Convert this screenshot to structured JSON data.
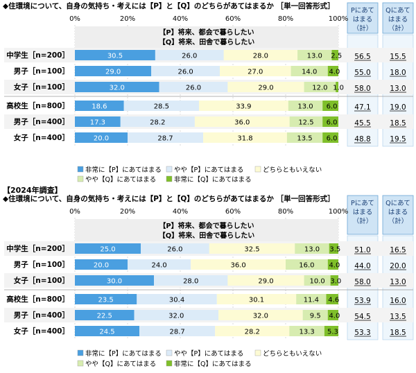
{
  "chart_data": [
    {
      "type": "bar",
      "stacked": true,
      "orientation": "horizontal",
      "year_label": "",
      "title": "◆住環境について、自身の気持ち・考えには【P】と【Q】のどちらがあてはまるか ［単一回答形式］",
      "axis_ticks": [
        "0%",
        "20%",
        "40%",
        "60%",
        "80%",
        "100%"
      ],
      "xlim": [
        0,
        100
      ],
      "statement_p": "【P】将来、都会で暮らしたい",
      "statement_q": "【Q】将来、田舎で暮らしたい",
      "summary_headers": [
        "Pにあて\nはまる\n（計）",
        "Qにあて\nはまる\n（計）"
      ],
      "categories": [
        "中学生［n=200］",
        "男子［n=100］",
        "女子［n=100］",
        "高校生［n=800］",
        "男子［n=400］",
        "女子［n=400］"
      ],
      "series": [
        {
          "name": "非常に【P】にあてはまる",
          "values": [
            30.5,
            29.0,
            32.0,
            18.6,
            17.3,
            20.0
          ]
        },
        {
          "name": "やや【P】にあてはまる",
          "values": [
            26.0,
            26.0,
            26.0,
            28.5,
            28.2,
            28.7
          ]
        },
        {
          "name": "どちらともいえない",
          "values": [
            28.0,
            27.0,
            29.0,
            33.9,
            36.0,
            31.8
          ]
        },
        {
          "name": "やや【Q】にあてはまる",
          "values": [
            13.0,
            14.0,
            12.0,
            13.0,
            12.5,
            13.5
          ]
        },
        {
          "name": "非常に【Q】にあてはまる",
          "values": [
            2.5,
            4.0,
            1.0,
            6.0,
            6.0,
            6.0
          ]
        }
      ],
      "p_total": [
        "56.5",
        "55.0",
        "58.0",
        "47.1",
        "45.5",
        "48.8"
      ],
      "q_total": [
        "15.5",
        "18.0",
        "13.0",
        "19.0",
        "18.5",
        "19.5"
      ]
    },
    {
      "type": "bar",
      "stacked": true,
      "orientation": "horizontal",
      "year_label": "【2024年調査】",
      "title": "◆住環境について、自身の気持ち・考えには【P】と【Q】のどちらがあてはまるか ［単一回答形式］",
      "axis_ticks": [
        "0%",
        "20%",
        "40%",
        "60%",
        "80%",
        "100%"
      ],
      "xlim": [
        0,
        100
      ],
      "statement_p": "【P】将来、都会で暮らしたい",
      "statement_q": "【Q】将来、田舎で暮らしたい",
      "summary_headers": [
        "Pにあて\nはまる\n（計）",
        "Qにあて\nはまる\n（計）"
      ],
      "categories": [
        "中学生［n=200］",
        "男子［n=100］",
        "女子［n=100］",
        "高校生［n=800］",
        "男子［n=400］",
        "女子［n=400］"
      ],
      "series": [
        {
          "name": "非常に【P】にあてはまる",
          "values": [
            25.0,
            20.0,
            30.0,
            23.5,
            22.5,
            24.5
          ]
        },
        {
          "name": "やや【P】にあてはまる",
          "values": [
            26.0,
            24.0,
            28.0,
            30.4,
            32.0,
            28.7
          ]
        },
        {
          "name": "どちらともいえない",
          "values": [
            32.5,
            36.0,
            29.0,
            30.1,
            32.0,
            28.2
          ]
        },
        {
          "name": "やや【Q】にあてはまる",
          "values": [
            13.0,
            16.0,
            10.0,
            11.4,
            9.5,
            13.3
          ]
        },
        {
          "name": "非常に【Q】にあてはまる",
          "values": [
            3.5,
            4.0,
            3.0,
            4.6,
            4.0,
            5.3
          ]
        }
      ],
      "p_total": [
        "51.0",
        "44.0",
        "58.0",
        "53.9",
        "54.5",
        "53.3"
      ],
      "q_total": [
        "16.5",
        "20.0",
        "13.0",
        "16.0",
        "13.5",
        "18.5"
      ]
    }
  ],
  "colors": [
    "#4a9fe0",
    "#dcebf8",
    "#fdfbd4",
    "#d7ecb0",
    "#7fbf2a"
  ]
}
